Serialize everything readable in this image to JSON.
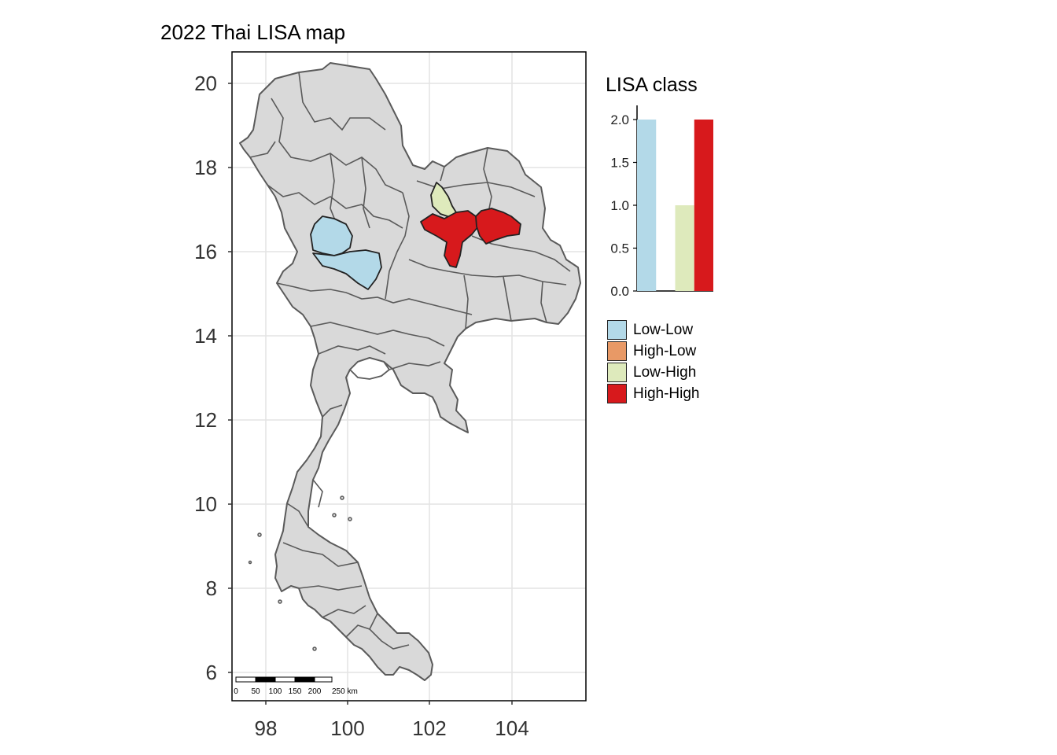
{
  "title": "2022 Thai LISA map",
  "map": {
    "x_axis": {
      "ticks": [
        "98",
        "100",
        "102",
        "104"
      ]
    },
    "y_axis": {
      "ticks": [
        "20",
        "18",
        "16",
        "14",
        "12",
        "10",
        "8",
        "6"
      ]
    },
    "base_fill": "#d9d9d9",
    "border_color": "#5a5a5a",
    "scale_bar": {
      "labels": [
        "0",
        "50",
        "100",
        "150",
        "200",
        "250 km"
      ]
    },
    "highlighted_regions": [
      {
        "class": "Low-Low",
        "color": "#b3d9e8"
      },
      {
        "class": "Low-Low",
        "color": "#b3d9e8"
      },
      {
        "class": "Low-High",
        "color": "#deeabc"
      },
      {
        "class": "High-High",
        "color": "#d7191c"
      },
      {
        "class": "High-High",
        "color": "#d7191c"
      }
    ]
  },
  "legend": {
    "title": "LISA class",
    "items": [
      {
        "label": "Low-Low",
        "color": "#b3d9e8"
      },
      {
        "label": "High-Low",
        "color": "#e89966"
      },
      {
        "label": "Low-High",
        "color": "#deeabc"
      },
      {
        "label": "High-High",
        "color": "#d7191c"
      }
    ]
  },
  "chart_data": {
    "type": "bar",
    "categories": [
      "Low-Low",
      "High-Low",
      "Low-High",
      "High-High"
    ],
    "values": [
      2,
      0,
      1,
      2
    ],
    "colors": [
      "#b3d9e8",
      "#e89966",
      "#deeabc",
      "#d7191c"
    ],
    "ylim": [
      0,
      2.0
    ],
    "yticks": [
      "0.0",
      "0.5",
      "1.0",
      "1.5",
      "2.0"
    ]
  }
}
